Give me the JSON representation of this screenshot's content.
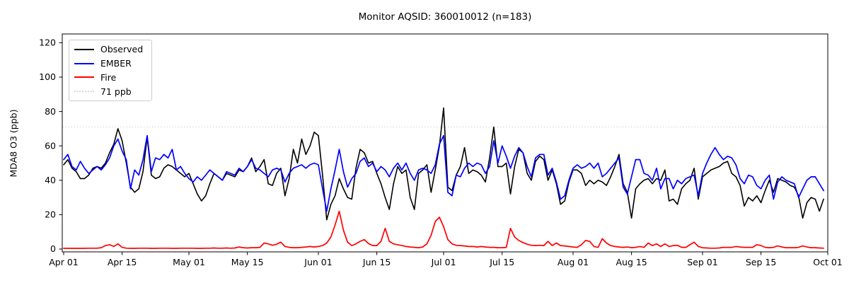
{
  "title": "Monitor AQSID: 360010012 (n=183)",
  "y_axis": {
    "label": "MDA8 O3 (ppb)",
    "ticks": [
      0,
      20,
      40,
      60,
      80,
      100,
      120
    ]
  },
  "x_axis": {
    "tick_labels": [
      "Apr 01",
      "Apr 15",
      "May 01",
      "May 15",
      "Jun 01",
      "Jun 15",
      "Jul 01",
      "Jul 15",
      "Aug 01",
      "Aug 15",
      "Sep 01",
      "Sep 15",
      "Oct 01"
    ],
    "tick_days": [
      0,
      14,
      30,
      44,
      61,
      75,
      91,
      105,
      122,
      136,
      153,
      167,
      183
    ]
  },
  "legend": {
    "items": [
      {
        "label": "Observed",
        "color": "#000000",
        "style": "solid"
      },
      {
        "label": "EMBER",
        "color": "#0000ff",
        "style": "solid"
      },
      {
        "label": "Fire",
        "color": "#ff0000",
        "style": "solid"
      },
      {
        "label": "71 ppb",
        "color": "#d9d9d9",
        "style": "dotted"
      }
    ]
  },
  "chart_data": {
    "type": "line",
    "title": "Monitor AQSID: 360010012 (n=183)",
    "xlabel": "",
    "ylabel": "MDA8 O3 (ppb)",
    "x_unit": "daily values, day index 0 = Apr 01, day 182 = Sep 30",
    "x_range_labels": [
      "Apr 01",
      "Oct 01"
    ],
    "ylim": [
      -2,
      125
    ],
    "grid": false,
    "legend_position": "upper left",
    "threshold": {
      "value": 71,
      "label": "71 ppb",
      "color": "#d9d9d9",
      "style": "dotted"
    },
    "series": [
      {
        "name": "Observed",
        "color": "#000000",
        "values": [
          49,
          52,
          47,
          45,
          41,
          41,
          43,
          47,
          48,
          47,
          50,
          56,
          61,
          70,
          63,
          50,
          36,
          33,
          35,
          45,
          65,
          43,
          41,
          42,
          47,
          49,
          48,
          46,
          44,
          42,
          44,
          38,
          32,
          28,
          31,
          38,
          44,
          42,
          40,
          44,
          43,
          42,
          46,
          45,
          48,
          53,
          45,
          48,
          52,
          38,
          37,
          44,
          47,
          31,
          41,
          58,
          50,
          64,
          55,
          60,
          68,
          66,
          43,
          17,
          26,
          31,
          41,
          35,
          30,
          29,
          47,
          58,
          56,
          50,
          51,
          44,
          38,
          30,
          23,
          38,
          48,
          44,
          46,
          30,
          23,
          44,
          46,
          49,
          33,
          46,
          60,
          82,
          36,
          34,
          43,
          48,
          59,
          44,
          46,
          45,
          43,
          39,
          53,
          71,
          48,
          48,
          50,
          32,
          48,
          58,
          56,
          44,
          40,
          51,
          54,
          52,
          40,
          46,
          38,
          26,
          28,
          39,
          46,
          46,
          44,
          37,
          40,
          38,
          40,
          39,
          37,
          42,
          48,
          55,
          38,
          33,
          18,
          35,
          38,
          40,
          41,
          38,
          41,
          40,
          46,
          28,
          29,
          26,
          35,
          38,
          40,
          47,
          29,
          42,
          44,
          46,
          47,
          48,
          50,
          51,
          44,
          42,
          37,
          25,
          30,
          28,
          31,
          27,
          34,
          40,
          33,
          41,
          40,
          39,
          37,
          36,
          31,
          18,
          27,
          30,
          29,
          22,
          29
        ]
      },
      {
        "name": "EMBER",
        "color": "#0000ff",
        "values": [
          52,
          55,
          48,
          46,
          51,
          47,
          44,
          46,
          48,
          46,
          49,
          53,
          60,
          64,
          57,
          52,
          35,
          46,
          43,
          52,
          66,
          45,
          53,
          52,
          55,
          53,
          58,
          46,
          48,
          44,
          41,
          39,
          42,
          40,
          43,
          46,
          44,
          42,
          40,
          45,
          44,
          43,
          47,
          45,
          48,
          52,
          47,
          46,
          44,
          42,
          46,
          47,
          46,
          39,
          44,
          47,
          48,
          49,
          47,
          49,
          50,
          49,
          35,
          22,
          35,
          46,
          58,
          45,
          36,
          41,
          44,
          51,
          53,
          48,
          50,
          45,
          48,
          46,
          42,
          47,
          50,
          46,
          50,
          44,
          40,
          46,
          47,
          46,
          44,
          49,
          61,
          66,
          33,
          31,
          43,
          42,
          47,
          50,
          48,
          50,
          49,
          44,
          48,
          63,
          50,
          60,
          54,
          47,
          54,
          59,
          56,
          48,
          42,
          53,
          55,
          55,
          43,
          47,
          39,
          29,
          31,
          40,
          47,
          49,
          47,
          48,
          50,
          47,
          50,
          42,
          44,
          47,
          50,
          53,
          36,
          32,
          42,
          52,
          52,
          44,
          43,
          40,
          47,
          35,
          41,
          41,
          35,
          40,
          38,
          41,
          42,
          43,
          31,
          44,
          50,
          55,
          59,
          55,
          52,
          54,
          53,
          49,
          41,
          38,
          43,
          42,
          37,
          35,
          40,
          43,
          29,
          39,
          42,
          40,
          39,
          38,
          30,
          35,
          40,
          42,
          42,
          38,
          34
        ]
      },
      {
        "name": "Fire",
        "color": "#ff0000",
        "values": [
          0.4,
          0.4,
          0.4,
          0.4,
          0.4,
          0.4,
          0.5,
          0.5,
          0.5,
          0.8,
          2,
          2.5,
          1.5,
          3,
          1,
          0.5,
          0.4,
          0.4,
          0.5,
          0.5,
          0.5,
          0.4,
          0.4,
          0.5,
          0.5,
          0.5,
          0.4,
          0.4,
          0.5,
          0.5,
          0.5,
          0.5,
          0.4,
          0.4,
          0.5,
          0.5,
          0.6,
          0.5,
          0.5,
          0.6,
          0.5,
          0.6,
          1.2,
          0.8,
          0.6,
          0.8,
          0.8,
          1,
          3.5,
          3,
          2.2,
          2.8,
          4,
          1.5,
          1,
          0.8,
          0.8,
          1,
          1.2,
          1.5,
          1.2,
          1.5,
          2,
          3.5,
          7,
          14,
          22,
          11,
          4,
          2,
          3,
          4.5,
          5.5,
          3.2,
          2,
          2,
          4.5,
          12,
          4.5,
          3,
          2.5,
          2,
          1.5,
          1.2,
          1,
          0.8,
          1.2,
          3,
          8,
          16,
          18.5,
          13,
          5.5,
          3,
          2.2,
          2,
          1.8,
          1.5,
          1.5,
          1.2,
          1.5,
          1.2,
          1,
          1,
          0.8,
          0.8,
          1,
          12,
          7,
          5,
          3.8,
          2.8,
          2.2,
          2,
          2.2,
          2,
          4.5,
          2,
          3.5,
          2,
          1.8,
          1.5,
          1.2,
          1,
          2.5,
          5,
          4.5,
          1.5,
          1,
          6,
          3.5,
          2,
          1.5,
          1.2,
          1,
          1.2,
          0.8,
          1,
          1.5,
          1,
          3.5,
          2,
          3,
          1.5,
          3,
          1.5,
          2,
          2.2,
          1,
          1,
          2.5,
          4,
          1.5,
          0.8,
          0.6,
          0.5,
          0.5,
          0.6,
          1,
          1,
          1,
          1.5,
          1.2,
          1,
          1,
          1,
          2.5,
          2,
          1,
          0.8,
          1,
          1.8,
          1.2,
          0.8,
          0.8,
          0.8,
          1,
          1.8,
          1.2,
          0.8,
          0.8,
          0.6,
          0.5
        ]
      }
    ]
  }
}
